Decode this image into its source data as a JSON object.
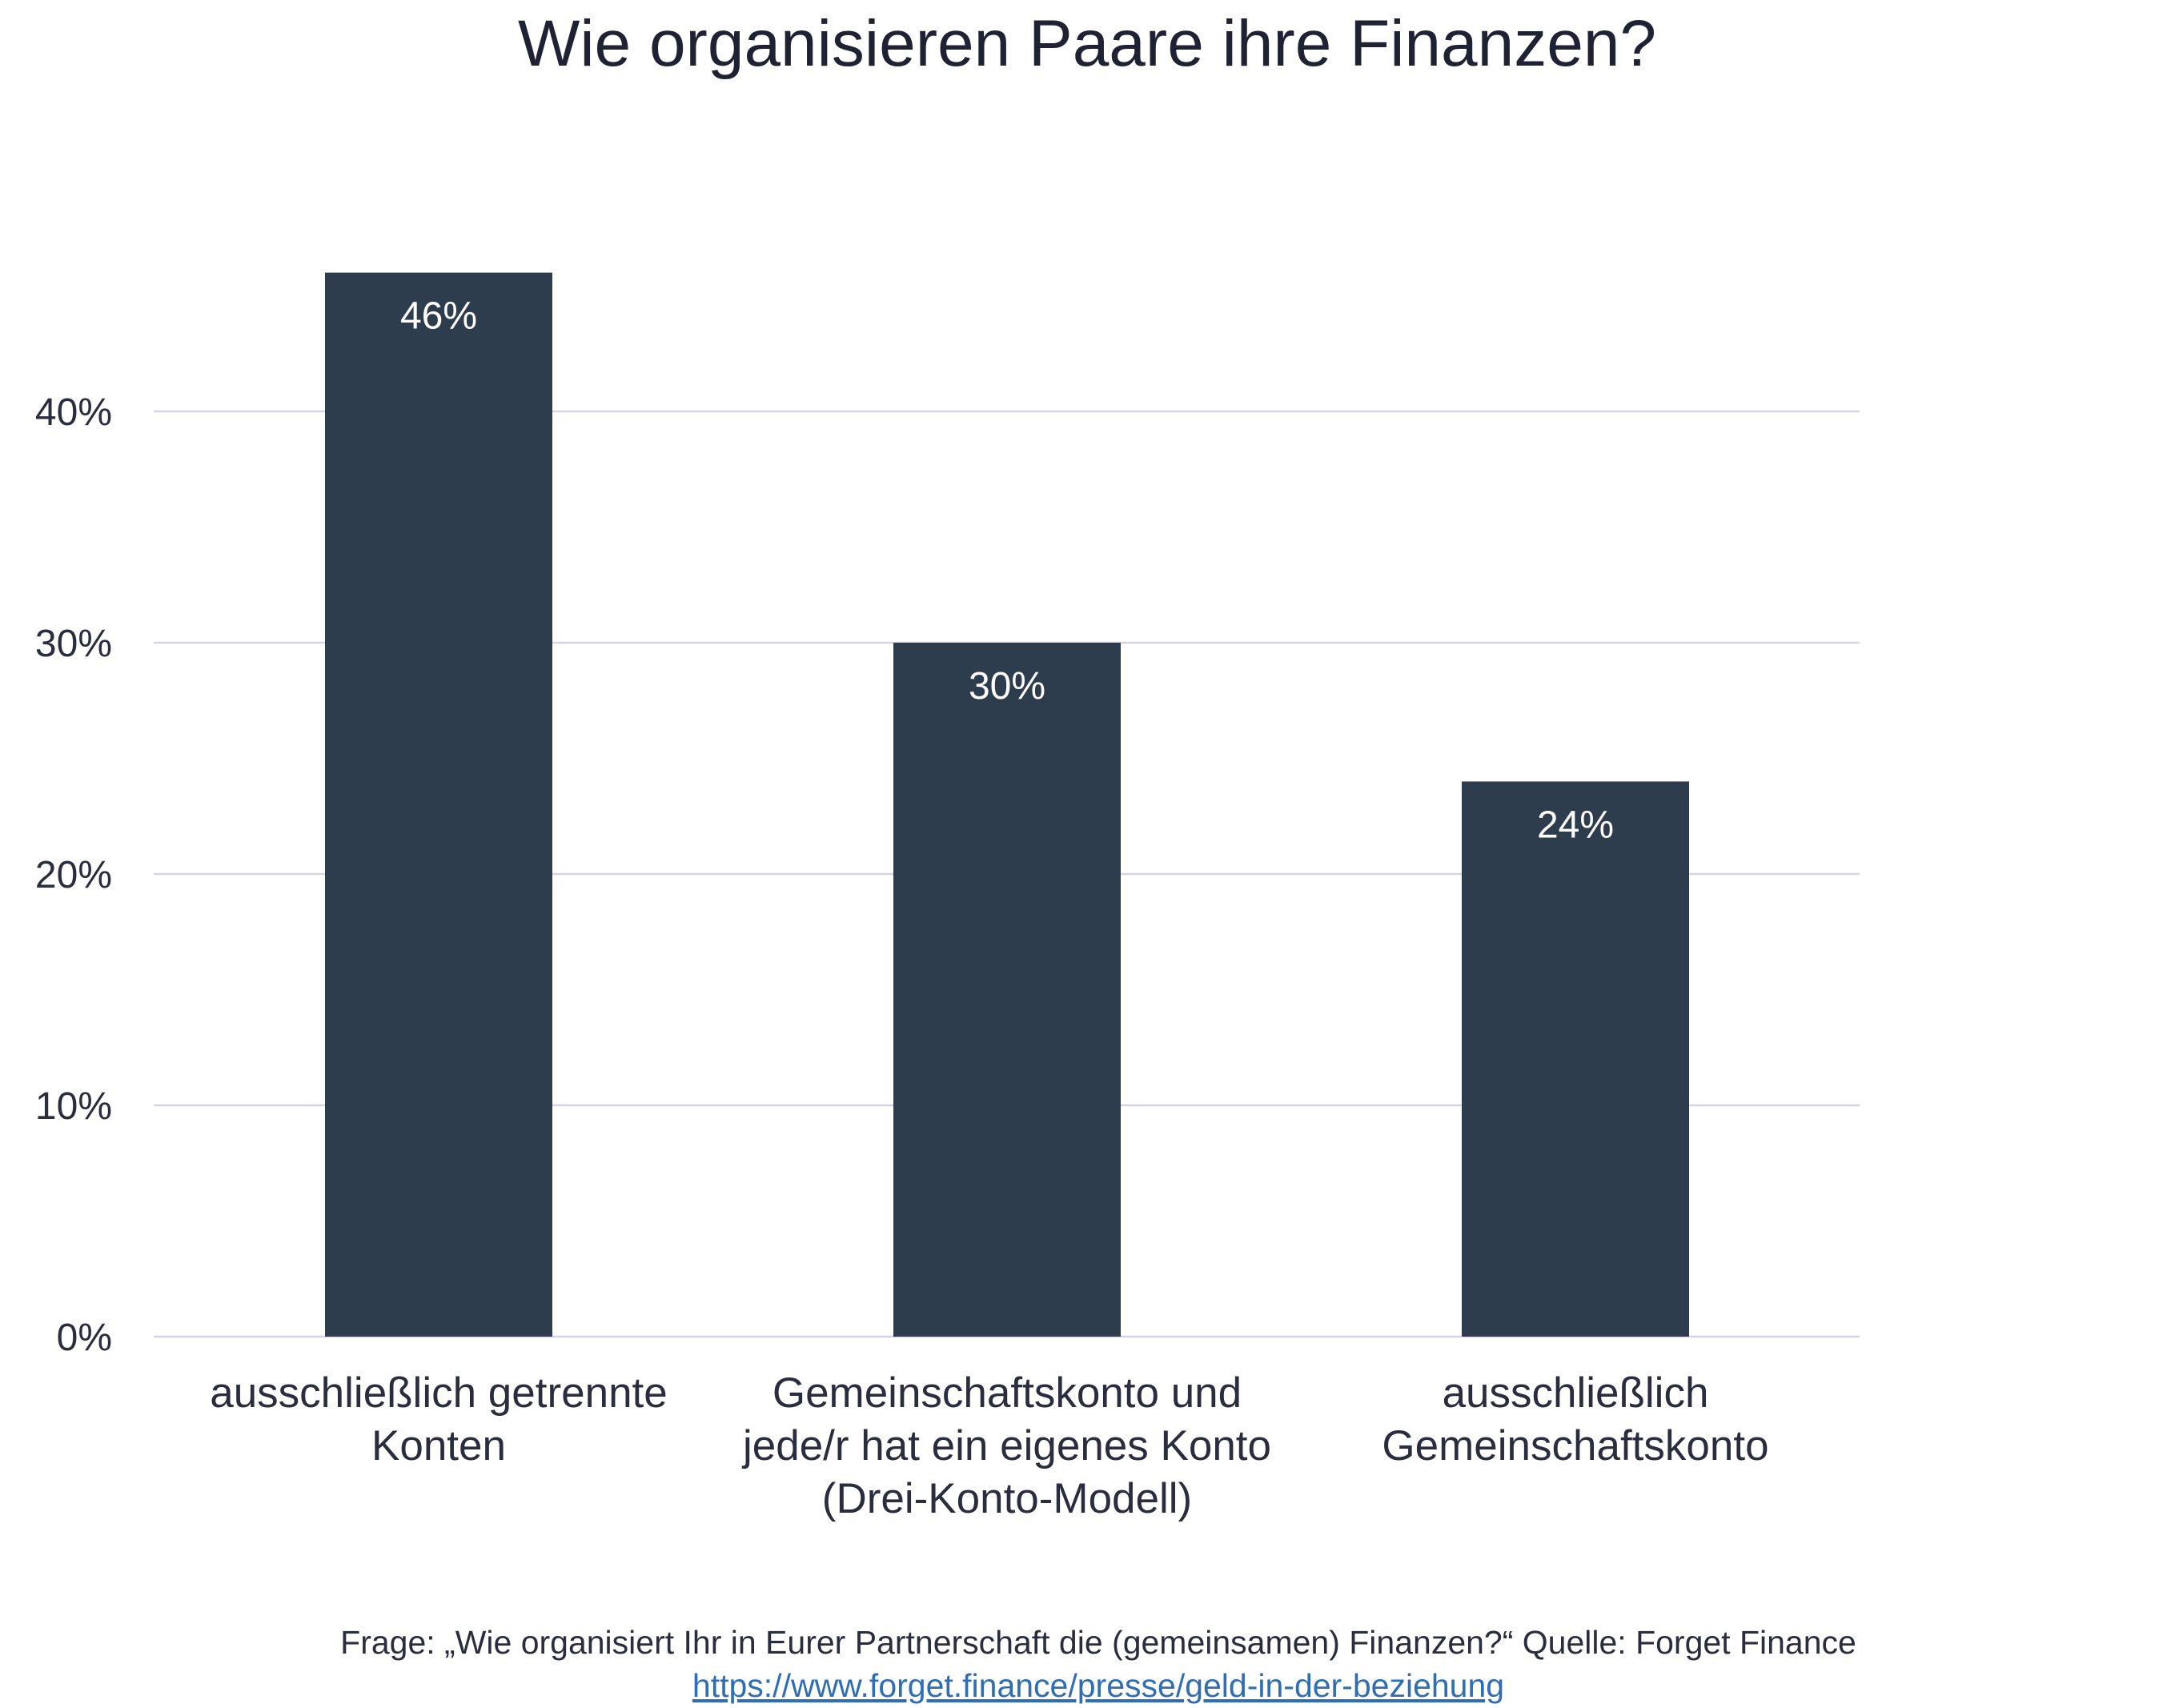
{
  "chart_data": {
    "type": "bar",
    "title": "Wie organisieren Paare ihre Finanzen?",
    "categories": [
      [
        "ausschließlich getrennte",
        "Konten"
      ],
      [
        "Gemeinschaftskonto und",
        "jede/r hat ein eigenes Konto",
        "(Drei-Konto-Modell)"
      ],
      [
        "ausschließlich",
        "Gemeinschaftskonto"
      ]
    ],
    "values": [
      46,
      30,
      24
    ],
    "data_labels": [
      "46%",
      "30%",
      "24%"
    ],
    "yticks": [
      0,
      10,
      20,
      30,
      40
    ],
    "ytick_labels": [
      "0%",
      "10%",
      "20%",
      "30%",
      "40%"
    ],
    "ylim": [
      0,
      50
    ],
    "grid": true,
    "legend": "none",
    "xlabel": "",
    "ylabel": "",
    "colors": {
      "bar": "#2e3d4e",
      "grid": "#d3d4e4",
      "text": "#2a2d3d",
      "link": "#2f6db5"
    }
  },
  "footer": {
    "question": "Frage: „Wie organisiert Ihr in Eurer Partnerschaft die (gemeinsamen) Finanzen?“ Quelle: Forget Finance",
    "link": "https://www.forget.finance/presse/geld-in-der-beziehung"
  }
}
